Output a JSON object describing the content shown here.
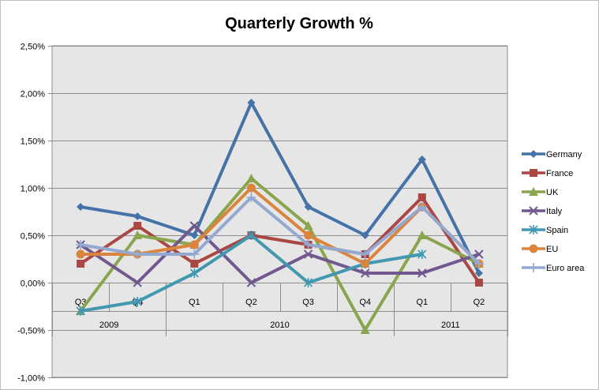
{
  "chart_data": {
    "type": "line",
    "title": "Quarterly Growth %",
    "xlabel": "",
    "ylabel": "",
    "ylim": [
      -1.0,
      2.5
    ],
    "y_ticks": [
      "2,50%",
      "2,00%",
      "1,50%",
      "1,00%",
      "0,50%",
      "0,00%",
      "-0,50%",
      "-1,00%"
    ],
    "y_tick_values": [
      2.5,
      2.0,
      1.5,
      1.0,
      0.5,
      0.0,
      -0.5,
      -1.0
    ],
    "categories": [
      "Q3",
      "Q4",
      "Q1",
      "Q2",
      "Q3",
      "Q4",
      "Q1",
      "Q2"
    ],
    "years": [
      {
        "label": "2009",
        "start": 0,
        "end": 1
      },
      {
        "label": "2010",
        "start": 2,
        "end": 5
      },
      {
        "label": "2011",
        "start": 6,
        "end": 7
      }
    ],
    "legend_position": "right",
    "series": [
      {
        "name": "Germany",
        "color": "#4572A7",
        "marker": "diamond",
        "values": [
          0.8,
          0.7,
          0.5,
          1.9,
          0.8,
          0.5,
          1.3,
          0.1
        ]
      },
      {
        "name": "France",
        "color": "#AA4643",
        "marker": "square",
        "values": [
          0.2,
          0.6,
          0.2,
          0.5,
          0.4,
          0.3,
          0.9,
          0.0
        ]
      },
      {
        "name": "UK",
        "color": "#89A54E",
        "marker": "triangle",
        "values": [
          -0.3,
          0.5,
          0.4,
          1.1,
          0.6,
          -0.5,
          0.5,
          0.2
        ]
      },
      {
        "name": "Italy",
        "color": "#71588F",
        "marker": "x",
        "values": [
          0.4,
          0.0,
          0.6,
          0.0,
          0.3,
          0.1,
          0.1,
          0.3
        ]
      },
      {
        "name": "Spain",
        "color": "#4198AF",
        "marker": "star",
        "values": [
          -0.3,
          -0.2,
          0.1,
          0.5,
          0.0,
          0.2,
          0.3,
          null
        ]
      },
      {
        "name": "EU",
        "color": "#DB843D",
        "marker": "circle",
        "values": [
          0.3,
          0.3,
          0.4,
          1.0,
          0.5,
          0.2,
          0.8,
          0.2
        ]
      },
      {
        "name": "Euro area",
        "color": "#93A9CF",
        "marker": "plus",
        "values": [
          0.4,
          0.3,
          0.3,
          0.9,
          0.4,
          0.3,
          0.8,
          0.2
        ]
      }
    ]
  }
}
